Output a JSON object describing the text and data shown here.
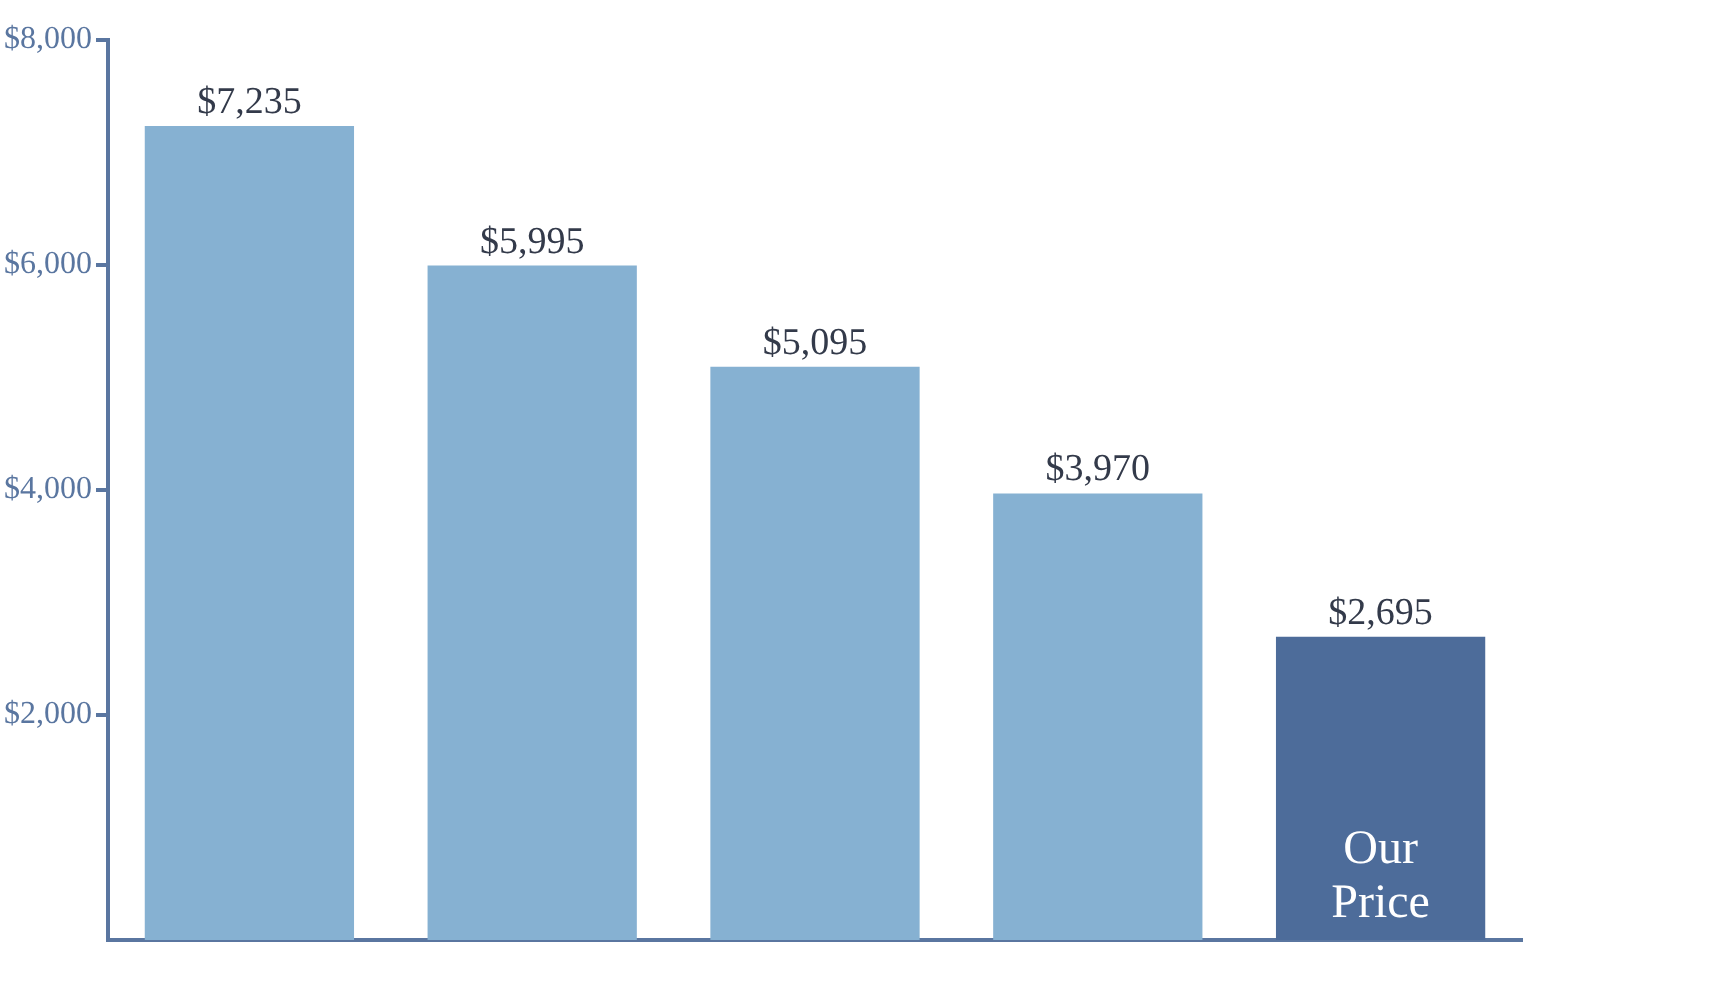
{
  "chart_data": {
    "type": "bar",
    "categories": [
      null,
      null,
      null,
      null,
      "Our Price"
    ],
    "values": [
      7235,
      5995,
      5095,
      3970,
      2695
    ],
    "colors": [
      "#86b1d2",
      "#86b1d2",
      "#86b1d2",
      "#86b1d2",
      "#4d6c9a"
    ],
    "value_labels": [
      "$7,235",
      "$5,995",
      "$5,095",
      "$3,970",
      "$2,695"
    ],
    "ylim": [
      0,
      8000
    ],
    "yticks": [
      {
        "value": 2000,
        "label": "$2,000"
      },
      {
        "value": 4000,
        "label": "$4,000"
      },
      {
        "value": 6000,
        "label": "$6,000"
      },
      {
        "value": 8000,
        "label": "$8,000"
      }
    ],
    "grid": false,
    "legend": false
  }
}
